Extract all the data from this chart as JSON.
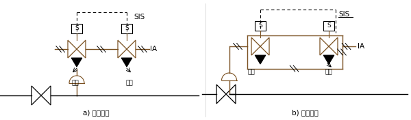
{
  "label_a": "a) 并联配置",
  "label_b": "b) 串联配置",
  "sis_label": "SIS",
  "ia_label": "IA",
  "exhaust_label": "排气",
  "bg_color": "#ffffff",
  "lc": "#000000",
  "brown": "#7a5020",
  "lw": 0.8
}
